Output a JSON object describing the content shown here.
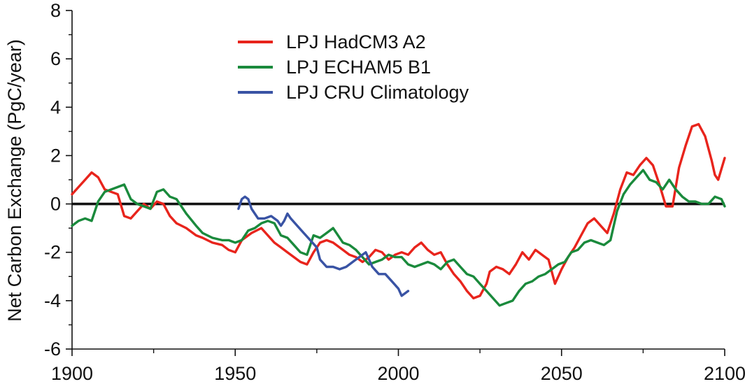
{
  "chart_data": {
    "type": "line",
    "xlabel": "",
    "ylabel": "Net Carbon Exchange (PgC/year)",
    "xlim": [
      1900,
      2100
    ],
    "ylim": [
      -6,
      8
    ],
    "xticks": [
      1900,
      1950,
      2000,
      2050,
      2100
    ],
    "yticks": [
      -6,
      -4,
      -2,
      0,
      2,
      4,
      6,
      8
    ],
    "x_minor_ticks": [
      1925,
      1975,
      2025,
      2075
    ],
    "y_minor_ticks": [
      -5,
      -3,
      -1,
      1,
      3,
      5,
      7
    ],
    "reference_line_y": 0,
    "grid": false,
    "legend_position": "top-center",
    "series": [
      {
        "name": "LPJ HadCM3 A2",
        "color": "#e8241c",
        "points": [
          [
            1900,
            0.4
          ],
          [
            1902,
            0.7
          ],
          [
            1904,
            1.0
          ],
          [
            1906,
            1.3
          ],
          [
            1908,
            1.1
          ],
          [
            1910,
            0.6
          ],
          [
            1912,
            0.5
          ],
          [
            1914,
            0.4
          ],
          [
            1916,
            -0.5
          ],
          [
            1918,
            -0.6
          ],
          [
            1920,
            -0.3
          ],
          [
            1922,
            0.0
          ],
          [
            1924,
            -0.2
          ],
          [
            1926,
            0.1
          ],
          [
            1928,
            0.0
          ],
          [
            1930,
            -0.5
          ],
          [
            1932,
            -0.8
          ],
          [
            1935,
            -1.0
          ],
          [
            1938,
            -1.3
          ],
          [
            1940,
            -1.4
          ],
          [
            1943,
            -1.6
          ],
          [
            1946,
            -1.7
          ],
          [
            1948,
            -1.9
          ],
          [
            1950,
            -2.0
          ],
          [
            1952,
            -1.5
          ],
          [
            1955,
            -1.2
          ],
          [
            1958,
            -1.0
          ],
          [
            1960,
            -1.3
          ],
          [
            1962,
            -1.6
          ],
          [
            1964,
            -1.8
          ],
          [
            1966,
            -2.0
          ],
          [
            1968,
            -2.2
          ],
          [
            1970,
            -2.4
          ],
          [
            1972,
            -2.5
          ],
          [
            1974,
            -2.0
          ],
          [
            1976,
            -1.6
          ],
          [
            1978,
            -1.5
          ],
          [
            1980,
            -1.6
          ],
          [
            1983,
            -1.9
          ],
          [
            1985,
            -2.1
          ],
          [
            1987,
            -2.2
          ],
          [
            1989,
            -2.4
          ],
          [
            1991,
            -2.2
          ],
          [
            1993,
            -1.9
          ],
          [
            1995,
            -2.0
          ],
          [
            1997,
            -2.3
          ],
          [
            1999,
            -2.1
          ],
          [
            2001,
            -2.0
          ],
          [
            2003,
            -2.1
          ],
          [
            2005,
            -1.8
          ],
          [
            2007,
            -1.6
          ],
          [
            2009,
            -1.9
          ],
          [
            2011,
            -2.1
          ],
          [
            2013,
            -2.0
          ],
          [
            2015,
            -2.5
          ],
          [
            2017,
            -2.9
          ],
          [
            2019,
            -3.2
          ],
          [
            2021,
            -3.6
          ],
          [
            2023,
            -3.9
          ],
          [
            2025,
            -3.8
          ],
          [
            2027,
            -3.3
          ],
          [
            2028,
            -2.8
          ],
          [
            2030,
            -2.6
          ],
          [
            2032,
            -2.7
          ],
          [
            2034,
            -2.9
          ],
          [
            2036,
            -2.5
          ],
          [
            2038,
            -2.0
          ],
          [
            2040,
            -2.3
          ],
          [
            2042,
            -1.9
          ],
          [
            2044,
            -2.1
          ],
          [
            2046,
            -2.3
          ],
          [
            2048,
            -3.3
          ],
          [
            2050,
            -2.7
          ],
          [
            2052,
            -2.2
          ],
          [
            2054,
            -1.8
          ],
          [
            2056,
            -1.3
          ],
          [
            2058,
            -0.8
          ],
          [
            2060,
            -0.6
          ],
          [
            2062,
            -0.9
          ],
          [
            2064,
            -1.2
          ],
          [
            2066,
            -0.4
          ],
          [
            2068,
            0.6
          ],
          [
            2070,
            1.3
          ],
          [
            2072,
            1.2
          ],
          [
            2074,
            1.6
          ],
          [
            2076,
            1.9
          ],
          [
            2078,
            1.6
          ],
          [
            2080,
            0.8
          ],
          [
            2082,
            -0.1
          ],
          [
            2084,
            -0.1
          ],
          [
            2086,
            1.5
          ],
          [
            2088,
            2.4
          ],
          [
            2090,
            3.2
          ],
          [
            2092,
            3.3
          ],
          [
            2094,
            2.8
          ],
          [
            2096,
            1.8
          ],
          [
            2097,
            1.2
          ],
          [
            2098,
            1.0
          ],
          [
            2100,
            1.9
          ]
        ]
      },
      {
        "name": "LPJ ECHAM5 B1",
        "color": "#1a8a3c",
        "points": [
          [
            1900,
            -0.9
          ],
          [
            1902,
            -0.7
          ],
          [
            1904,
            -0.6
          ],
          [
            1906,
            -0.7
          ],
          [
            1908,
            0.1
          ],
          [
            1910,
            0.5
          ],
          [
            1912,
            0.6
          ],
          [
            1914,
            0.7
          ],
          [
            1916,
            0.8
          ],
          [
            1918,
            0.2
          ],
          [
            1920,
            0.0
          ],
          [
            1922,
            -0.1
          ],
          [
            1924,
            -0.2
          ],
          [
            1926,
            0.5
          ],
          [
            1928,
            0.6
          ],
          [
            1930,
            0.3
          ],
          [
            1932,
            0.2
          ],
          [
            1935,
            -0.4
          ],
          [
            1938,
            -0.9
          ],
          [
            1940,
            -1.2
          ],
          [
            1943,
            -1.4
          ],
          [
            1946,
            -1.5
          ],
          [
            1948,
            -1.5
          ],
          [
            1950,
            -1.6
          ],
          [
            1952,
            -1.5
          ],
          [
            1954,
            -1.1
          ],
          [
            1956,
            -1.0
          ],
          [
            1958,
            -0.8
          ],
          [
            1960,
            -0.7
          ],
          [
            1962,
            -0.8
          ],
          [
            1964,
            -1.3
          ],
          [
            1966,
            -1.4
          ],
          [
            1968,
            -1.7
          ],
          [
            1970,
            -2.0
          ],
          [
            1972,
            -2.1
          ],
          [
            1974,
            -1.3
          ],
          [
            1976,
            -1.4
          ],
          [
            1978,
            -1.2
          ],
          [
            1980,
            -1.0
          ],
          [
            1983,
            -1.6
          ],
          [
            1985,
            -1.7
          ],
          [
            1987,
            -1.9
          ],
          [
            1989,
            -2.2
          ],
          [
            1991,
            -2.5
          ],
          [
            1993,
            -2.4
          ],
          [
            1995,
            -2.3
          ],
          [
            1997,
            -2.1
          ],
          [
            1999,
            -2.2
          ],
          [
            2001,
            -2.2
          ],
          [
            2003,
            -2.5
          ],
          [
            2005,
            -2.6
          ],
          [
            2007,
            -2.5
          ],
          [
            2009,
            -2.4
          ],
          [
            2011,
            -2.5
          ],
          [
            2013,
            -2.7
          ],
          [
            2015,
            -2.4
          ],
          [
            2017,
            -2.3
          ],
          [
            2019,
            -2.6
          ],
          [
            2021,
            -2.9
          ],
          [
            2023,
            -3.0
          ],
          [
            2025,
            -3.3
          ],
          [
            2027,
            -3.6
          ],
          [
            2029,
            -3.9
          ],
          [
            2031,
            -4.2
          ],
          [
            2033,
            -4.1
          ],
          [
            2035,
            -4.0
          ],
          [
            2037,
            -3.6
          ],
          [
            2039,
            -3.3
          ],
          [
            2041,
            -3.2
          ],
          [
            2043,
            -3.0
          ],
          [
            2045,
            -2.9
          ],
          [
            2047,
            -2.7
          ],
          [
            2049,
            -2.5
          ],
          [
            2051,
            -2.4
          ],
          [
            2053,
            -2.0
          ],
          [
            2055,
            -1.9
          ],
          [
            2057,
            -1.6
          ],
          [
            2059,
            -1.5
          ],
          [
            2061,
            -1.6
          ],
          [
            2063,
            -1.7
          ],
          [
            2065,
            -1.5
          ],
          [
            2067,
            -0.3
          ],
          [
            2069,
            0.4
          ],
          [
            2071,
            0.8
          ],
          [
            2073,
            1.1
          ],
          [
            2075,
            1.4
          ],
          [
            2077,
            1.0
          ],
          [
            2079,
            0.9
          ],
          [
            2081,
            0.6
          ],
          [
            2083,
            1.0
          ],
          [
            2085,
            0.6
          ],
          [
            2087,
            0.3
          ],
          [
            2089,
            0.1
          ],
          [
            2091,
            0.1
          ],
          [
            2093,
            0.0
          ],
          [
            2095,
            0.0
          ],
          [
            2097,
            0.3
          ],
          [
            2099,
            0.2
          ],
          [
            2100,
            -0.1
          ]
        ]
      },
      {
        "name": "LPJ CRU Climatology",
        "color": "#3953a4",
        "points": [
          [
            1951,
            -0.2
          ],
          [
            1952,
            0.2
          ],
          [
            1953,
            0.3
          ],
          [
            1954,
            0.2
          ],
          [
            1955,
            -0.2
          ],
          [
            1957,
            -0.6
          ],
          [
            1959,
            -0.6
          ],
          [
            1961,
            -0.5
          ],
          [
            1963,
            -0.7
          ],
          [
            1964,
            -0.9
          ],
          [
            1965,
            -0.7
          ],
          [
            1966,
            -0.4
          ],
          [
            1967,
            -0.6
          ],
          [
            1969,
            -0.9
          ],
          [
            1971,
            -1.2
          ],
          [
            1973,
            -1.5
          ],
          [
            1975,
            -1.8
          ],
          [
            1976,
            -2.3
          ],
          [
            1978,
            -2.6
          ],
          [
            1980,
            -2.6
          ],
          [
            1982,
            -2.7
          ],
          [
            1984,
            -2.6
          ],
          [
            1986,
            -2.4
          ],
          [
            1988,
            -2.2
          ],
          [
            1990,
            -2.0
          ],
          [
            1992,
            -2.6
          ],
          [
            1994,
            -2.9
          ],
          [
            1996,
            -2.9
          ],
          [
            1998,
            -3.2
          ],
          [
            2000,
            -3.5
          ],
          [
            2001,
            -3.8
          ],
          [
            2002,
            -3.7
          ],
          [
            2003,
            -3.6
          ]
        ]
      }
    ]
  }
}
